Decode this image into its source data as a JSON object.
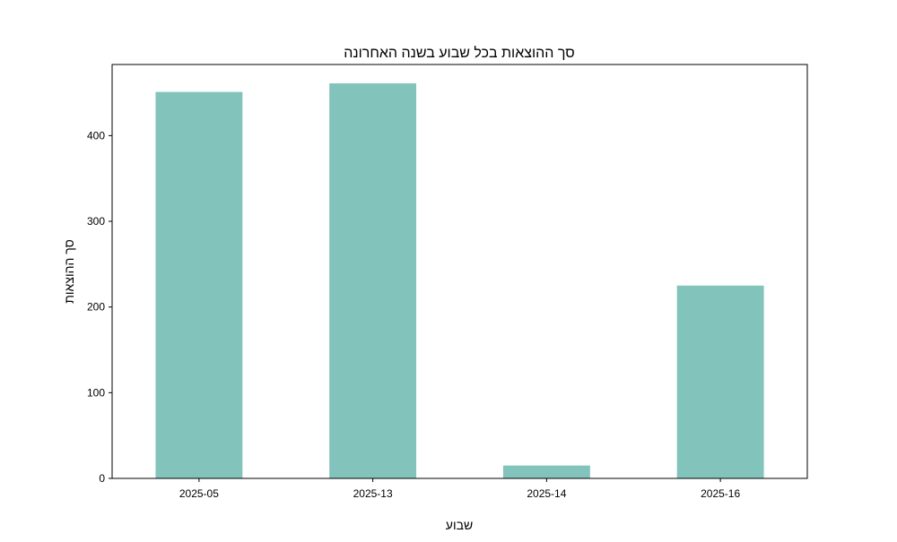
{
  "chart_data": {
    "type": "bar",
    "title": "סך ההוצאות בכל שבוע בשנה האחרונה",
    "xlabel": "שבוע",
    "ylabel": "סך ההוצאות",
    "categories": [
      "2025-05",
      "2025-13",
      "2025-14",
      "2025-16"
    ],
    "values": [
      451,
      461,
      15,
      225
    ],
    "ylim": [
      0,
      483
    ],
    "yticks": [
      0,
      100,
      200,
      300,
      400
    ],
    "grid": false,
    "legend": "none",
    "bar_color": "#82c3bc"
  }
}
